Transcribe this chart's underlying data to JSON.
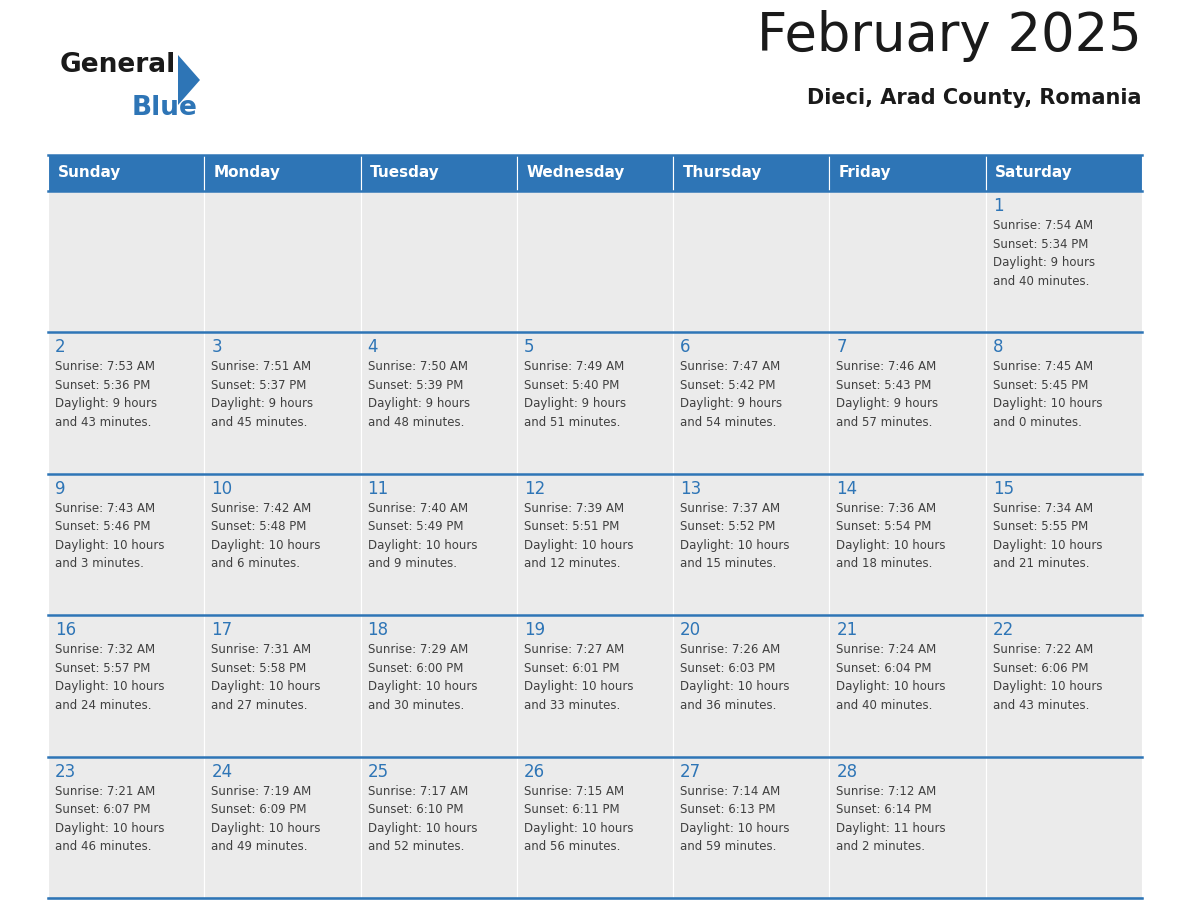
{
  "title": "February 2025",
  "subtitle": "Dieci, Arad County, Romania",
  "header_bg": "#2E75B6",
  "header_text": "#FFFFFF",
  "cell_bg": "#EBEBEB",
  "title_color": "#1A1A1A",
  "subtitle_color": "#1A1A1A",
  "day_number_color": "#2E75B6",
  "cell_text_color": "#404040",
  "line_color": "#2E75B6",
  "days_of_week": [
    "Sunday",
    "Monday",
    "Tuesday",
    "Wednesday",
    "Thursday",
    "Friday",
    "Saturday"
  ],
  "calendar_data": [
    [
      {
        "day": 0,
        "info": ""
      },
      {
        "day": 0,
        "info": ""
      },
      {
        "day": 0,
        "info": ""
      },
      {
        "day": 0,
        "info": ""
      },
      {
        "day": 0,
        "info": ""
      },
      {
        "day": 0,
        "info": ""
      },
      {
        "day": 1,
        "info": "Sunrise: 7:54 AM\nSunset: 5:34 PM\nDaylight: 9 hours\nand 40 minutes."
      }
    ],
    [
      {
        "day": 2,
        "info": "Sunrise: 7:53 AM\nSunset: 5:36 PM\nDaylight: 9 hours\nand 43 minutes."
      },
      {
        "day": 3,
        "info": "Sunrise: 7:51 AM\nSunset: 5:37 PM\nDaylight: 9 hours\nand 45 minutes."
      },
      {
        "day": 4,
        "info": "Sunrise: 7:50 AM\nSunset: 5:39 PM\nDaylight: 9 hours\nand 48 minutes."
      },
      {
        "day": 5,
        "info": "Sunrise: 7:49 AM\nSunset: 5:40 PM\nDaylight: 9 hours\nand 51 minutes."
      },
      {
        "day": 6,
        "info": "Sunrise: 7:47 AM\nSunset: 5:42 PM\nDaylight: 9 hours\nand 54 minutes."
      },
      {
        "day": 7,
        "info": "Sunrise: 7:46 AM\nSunset: 5:43 PM\nDaylight: 9 hours\nand 57 minutes."
      },
      {
        "day": 8,
        "info": "Sunrise: 7:45 AM\nSunset: 5:45 PM\nDaylight: 10 hours\nand 0 minutes."
      }
    ],
    [
      {
        "day": 9,
        "info": "Sunrise: 7:43 AM\nSunset: 5:46 PM\nDaylight: 10 hours\nand 3 minutes."
      },
      {
        "day": 10,
        "info": "Sunrise: 7:42 AM\nSunset: 5:48 PM\nDaylight: 10 hours\nand 6 minutes."
      },
      {
        "day": 11,
        "info": "Sunrise: 7:40 AM\nSunset: 5:49 PM\nDaylight: 10 hours\nand 9 minutes."
      },
      {
        "day": 12,
        "info": "Sunrise: 7:39 AM\nSunset: 5:51 PM\nDaylight: 10 hours\nand 12 minutes."
      },
      {
        "day": 13,
        "info": "Sunrise: 7:37 AM\nSunset: 5:52 PM\nDaylight: 10 hours\nand 15 minutes."
      },
      {
        "day": 14,
        "info": "Sunrise: 7:36 AM\nSunset: 5:54 PM\nDaylight: 10 hours\nand 18 minutes."
      },
      {
        "day": 15,
        "info": "Sunrise: 7:34 AM\nSunset: 5:55 PM\nDaylight: 10 hours\nand 21 minutes."
      }
    ],
    [
      {
        "day": 16,
        "info": "Sunrise: 7:32 AM\nSunset: 5:57 PM\nDaylight: 10 hours\nand 24 minutes."
      },
      {
        "day": 17,
        "info": "Sunrise: 7:31 AM\nSunset: 5:58 PM\nDaylight: 10 hours\nand 27 minutes."
      },
      {
        "day": 18,
        "info": "Sunrise: 7:29 AM\nSunset: 6:00 PM\nDaylight: 10 hours\nand 30 minutes."
      },
      {
        "day": 19,
        "info": "Sunrise: 7:27 AM\nSunset: 6:01 PM\nDaylight: 10 hours\nand 33 minutes."
      },
      {
        "day": 20,
        "info": "Sunrise: 7:26 AM\nSunset: 6:03 PM\nDaylight: 10 hours\nand 36 minutes."
      },
      {
        "day": 21,
        "info": "Sunrise: 7:24 AM\nSunset: 6:04 PM\nDaylight: 10 hours\nand 40 minutes."
      },
      {
        "day": 22,
        "info": "Sunrise: 7:22 AM\nSunset: 6:06 PM\nDaylight: 10 hours\nand 43 minutes."
      }
    ],
    [
      {
        "day": 23,
        "info": "Sunrise: 7:21 AM\nSunset: 6:07 PM\nDaylight: 10 hours\nand 46 minutes."
      },
      {
        "day": 24,
        "info": "Sunrise: 7:19 AM\nSunset: 6:09 PM\nDaylight: 10 hours\nand 49 minutes."
      },
      {
        "day": 25,
        "info": "Sunrise: 7:17 AM\nSunset: 6:10 PM\nDaylight: 10 hours\nand 52 minutes."
      },
      {
        "day": 26,
        "info": "Sunrise: 7:15 AM\nSunset: 6:11 PM\nDaylight: 10 hours\nand 56 minutes."
      },
      {
        "day": 27,
        "info": "Sunrise: 7:14 AM\nSunset: 6:13 PM\nDaylight: 10 hours\nand 59 minutes."
      },
      {
        "day": 28,
        "info": "Sunrise: 7:12 AM\nSunset: 6:14 PM\nDaylight: 11 hours\nand 2 minutes."
      },
      {
        "day": 0,
        "info": ""
      }
    ]
  ]
}
